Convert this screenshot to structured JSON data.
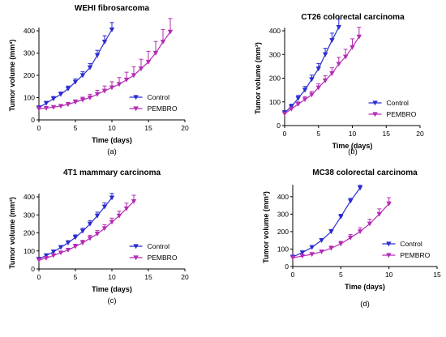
{
  "colors": {
    "control": "#2a2ad0",
    "pembro": "#b52bb5",
    "axis": "#000000"
  },
  "chart_data": [
    {
      "type": "line",
      "title": "WEHI fibrosarcoma",
      "xlabel": "Time (days)",
      "ylabel": "Tumor volume (mm³)",
      "xlim": [
        0,
        20
      ],
      "ylim": [
        0,
        400
      ],
      "xticks": [
        0,
        5,
        10,
        15,
        20
      ],
      "yticks": [
        0,
        100,
        200,
        300,
        400
      ],
      "caption": "(a)",
      "legend_position": "lower-right",
      "series": [
        {
          "name": "Control",
          "marker": "down-triangle",
          "x": [
            0,
            1,
            2,
            3,
            4,
            5,
            6,
            7,
            8,
            9,
            10
          ],
          "y": [
            55,
            75,
            95,
            115,
            140,
            170,
            200,
            235,
            290,
            350,
            405
          ],
          "err": [
            8,
            8,
            10,
            10,
            12,
            14,
            16,
            18,
            22,
            28,
            32
          ]
        },
        {
          "name": "PEMBRO",
          "marker": "down-triangle",
          "x": [
            0,
            1,
            2,
            3,
            4,
            5,
            6,
            7,
            8,
            9,
            10,
            11,
            12,
            13,
            14,
            15,
            16,
            17,
            18
          ],
          "y": [
            50,
            53,
            57,
            62,
            70,
            80,
            90,
            100,
            115,
            130,
            145,
            160,
            180,
            200,
            230,
            260,
            300,
            350,
            395
          ],
          "err": [
            5,
            5,
            6,
            7,
            8,
            10,
            12,
            15,
            18,
            22,
            26,
            30,
            34,
            38,
            42,
            48,
            52,
            56,
            60
          ]
        }
      ]
    },
    {
      "type": "line",
      "title": "CT26 colorectal carcinoma",
      "xlabel": "Time (days)",
      "ylabel": "Tumor volume (mm³)",
      "xlim": [
        0,
        20
      ],
      "ylim": [
        0,
        400
      ],
      "xticks": [
        0,
        5,
        10,
        15,
        20
      ],
      "yticks": [
        0,
        100,
        200,
        300,
        400
      ],
      "caption": "(b)",
      "legend_position": "lower-right",
      "series": [
        {
          "name": "Control",
          "marker": "down-triangle",
          "x": [
            0,
            1,
            2,
            3,
            4,
            5,
            6,
            7,
            8
          ],
          "y": [
            55,
            80,
            115,
            150,
            195,
            240,
            300,
            360,
            415
          ],
          "err": [
            8,
            10,
            12,
            15,
            18,
            22,
            26,
            30,
            34
          ]
        },
        {
          "name": "PEMBRO",
          "marker": "down-triangle",
          "x": [
            0,
            1,
            2,
            3,
            4,
            5,
            6,
            7,
            8,
            9,
            10,
            11
          ],
          "y": [
            50,
            70,
            90,
            110,
            130,
            160,
            190,
            220,
            260,
            290,
            330,
            375
          ],
          "err": [
            6,
            8,
            10,
            12,
            14,
            16,
            20,
            24,
            28,
            32,
            36,
            40
          ]
        }
      ]
    },
    {
      "type": "line",
      "title": "4T1 mammary carcinoma",
      "xlabel": "Time (days)",
      "ylabel": "Tumor volume (mm³)",
      "xlim": [
        0,
        20
      ],
      "ylim": [
        0,
        400
      ],
      "xticks": [
        0,
        5,
        10,
        15,
        20
      ],
      "yticks": [
        0,
        100,
        200,
        300,
        400
      ],
      "caption": "(c)",
      "legend_position": "lower-right",
      "series": [
        {
          "name": "Control",
          "marker": "down-triangle",
          "x": [
            0,
            1,
            2,
            3,
            4,
            5,
            6,
            7,
            8,
            9,
            10
          ],
          "y": [
            55,
            75,
            95,
            120,
            145,
            175,
            210,
            250,
            295,
            345,
            395
          ],
          "err": [
            6,
            8,
            10,
            10,
            12,
            14,
            16,
            18,
            20,
            22,
            24
          ]
        },
        {
          "name": "PEMBRO",
          "marker": "down-triangle",
          "x": [
            0,
            1,
            2,
            3,
            4,
            5,
            6,
            7,
            8,
            9,
            10,
            11,
            12,
            13
          ],
          "y": [
            50,
            60,
            75,
            90,
            105,
            125,
            145,
            170,
            195,
            225,
            260,
            295,
            335,
            375
          ],
          "err": [
            5,
            6,
            7,
            8,
            10,
            12,
            14,
            16,
            18,
            20,
            22,
            26,
            30,
            34
          ]
        }
      ]
    },
    {
      "type": "line",
      "title": "MC38 colorectal carcinoma",
      "xlabel": "Time (days)",
      "ylabel": "Tumor volume (mm³)",
      "xlim": [
        0,
        15
      ],
      "ylim": [
        0,
        450
      ],
      "xticks": [
        0,
        5,
        10,
        15
      ],
      "yticks": [
        0,
        100,
        200,
        300,
        400
      ],
      "caption": "(d)",
      "legend_position": "lower-right",
      "series": [
        {
          "name": "Control",
          "marker": "down-triangle",
          "x": [
            0,
            1,
            2,
            3,
            4,
            5,
            6,
            7
          ],
          "y": [
            55,
            80,
            110,
            150,
            200,
            285,
            375,
            450
          ],
          "err": [
            6,
            8,
            10,
            10,
            12,
            14,
            16,
            16
          ]
        },
        {
          "name": "PEMBRO",
          "marker": "down-triangle",
          "x": [
            0,
            1,
            2,
            3,
            4,
            5,
            6,
            7,
            8,
            9,
            10
          ],
          "y": [
            50,
            60,
            70,
            85,
            105,
            130,
            165,
            200,
            245,
            300,
            360
          ],
          "err": [
            6,
            8,
            8,
            10,
            12,
            14,
            18,
            22,
            26,
            30,
            34
          ]
        }
      ]
    }
  ]
}
